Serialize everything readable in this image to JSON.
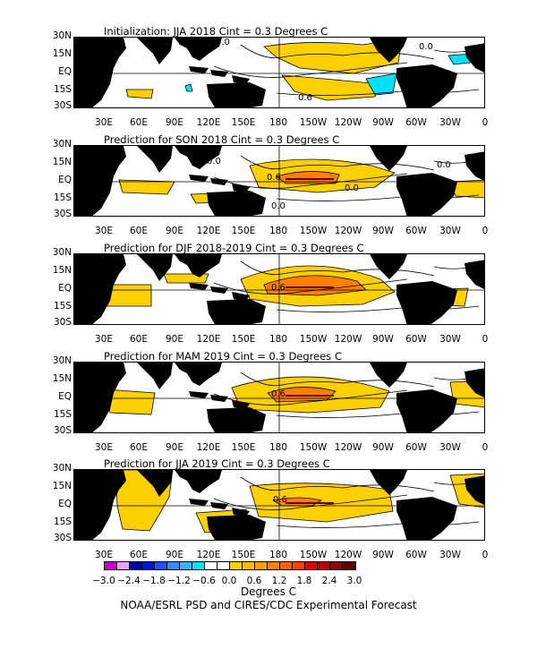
{
  "panels": [
    {
      "title": "Initialization: JJA 2018  Cint = 0.3 Degrees C",
      "contour_labels": [
        "0.0",
        "0.0",
        "0.6"
      ]
    },
    {
      "title": "Prediction for SON 2018  Cint = 0.3 Degrees C",
      "contour_labels": [
        "0.0",
        "0.6",
        "0.0",
        "0.0",
        "0.0"
      ]
    },
    {
      "title": "Prediction for DJF 2018-2019  Cint = 0.3 Degrees C",
      "contour_labels": [
        "0.6"
      ]
    },
    {
      "title": "Prediction for MAM 2019  Cint = 0.3 Degrees C",
      "contour_labels": [
        "0.6"
      ]
    },
    {
      "title": "Prediction for JJA 2019  Cint = 0.3 Degrees C",
      "contour_labels": [
        "0.6"
      ]
    }
  ],
  "lat_labels": [
    "30N",
    "15N",
    "EQ",
    "15S",
    "30S"
  ],
  "lon_labels": [
    "30E",
    "60E",
    "90E",
    "120E",
    "150E",
    "180",
    "150W",
    "120W",
    "90W",
    "60W",
    "30W",
    "0"
  ],
  "colorbar": {
    "ticks": [
      "−3.0",
      "−2.4",
      "−1.8",
      "−1.2",
      "−0.6",
      "0.0",
      "0.6",
      "1.2",
      "1.8",
      "2.4",
      "3.0"
    ],
    "colors": [
      "#c000c0",
      "#f0a0f0",
      "#0000a0",
      "#0018d0",
      "#2050ff",
      "#2f8fff",
      "#3fb0ff",
      "#00e0ff",
      "#ffffff",
      "#ffffff",
      "#ffd000",
      "#ffbf00",
      "#ffa000",
      "#ff8000",
      "#ff6000",
      "#ff4000",
      "#e00000",
      "#b00000",
      "#8b0000",
      "#600000"
    ],
    "label": "Degrees C"
  },
  "credit": "NOAA/ESRL PSD and CIRES/CDC Experimental Forecast"
}
